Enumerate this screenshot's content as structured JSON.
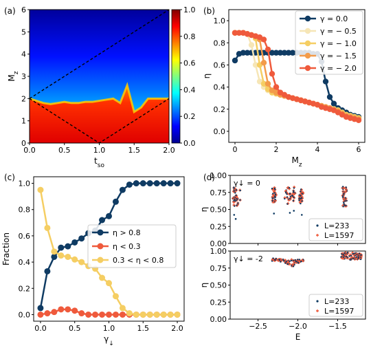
{
  "chart_data": [
    {
      "panel": "(a)",
      "type": "heatmap",
      "xlabel": "t_so",
      "ylabel": "M_z",
      "xlim": [
        0,
        2
      ],
      "ylim": [
        0,
        6
      ],
      "x_ticks": [
        "0.0",
        "0.5",
        "1.0",
        "1.5",
        "2.0"
      ],
      "y_ticks": [
        "0",
        "1",
        "2",
        "3",
        "4",
        "5",
        "6"
      ],
      "colorbar": {
        "range": [
          0,
          1
        ],
        "ticks": [
          "0.0",
          "0.2",
          "0.4",
          "0.6",
          "0.8",
          "1.0"
        ],
        "colormap": "jet"
      },
      "boundary_curve": {
        "x": [
          0,
          0.1,
          0.2,
          0.3,
          0.4,
          0.5,
          0.6,
          0.7,
          0.8,
          0.9,
          1.0,
          1.1,
          1.2,
          1.3,
          1.4,
          1.5,
          1.6,
          1.7,
          1.8,
          1.9,
          2.0
        ],
        "y": [
          2.0,
          1.9,
          1.8,
          1.75,
          1.8,
          1.85,
          1.8,
          1.8,
          1.85,
          1.85,
          1.9,
          1.95,
          2.0,
          1.8,
          2.6,
          1.4,
          1.6,
          2.0,
          2.0,
          2.0,
          2.0
        ]
      },
      "dashed_lines": [
        {
          "x": [
            0,
            2
          ],
          "y": [
            2,
            6
          ]
        },
        {
          "x": [
            0,
            1,
            2
          ],
          "y": [
            2,
            0,
            2
          ]
        }
      ]
    },
    {
      "panel": "(b)",
      "type": "line",
      "xlabel": "M_z",
      "ylabel": "η",
      "xlim": [
        -0.3,
        6.3
      ],
      "ylim": [
        -0.1,
        1.1
      ],
      "x_ticks": [
        "0",
        "2",
        "4",
        "6"
      ],
      "y_ticks": [
        "0.0",
        "0.2",
        "0.4",
        "0.6",
        "0.8",
        "1.0"
      ],
      "legend_position": "top-right",
      "x": [
        0,
        0.2,
        0.4,
        0.6,
        0.8,
        1.0,
        1.2,
        1.4,
        1.6,
        1.8,
        2.0,
        2.2,
        2.4,
        2.6,
        2.8,
        3.0,
        3.2,
        3.4,
        3.6,
        3.8,
        4.0,
        4.2,
        4.4,
        4.6,
        4.8,
        5.0,
        5.2,
        5.4,
        5.6,
        5.8,
        6.0
      ],
      "series": [
        {
          "name": "γ = 0.0",
          "color": "#0f3b63",
          "values": [
            0.64,
            0.7,
            0.71,
            0.71,
            0.71,
            0.71,
            0.71,
            0.71,
            0.71,
            0.71,
            0.71,
            0.71,
            0.71,
            0.71,
            0.71,
            0.71,
            0.71,
            0.71,
            0.71,
            0.7,
            0.7,
            0.63,
            0.45,
            0.31,
            0.25,
            0.21,
            0.19,
            0.17,
            0.15,
            0.14,
            0.13
          ]
        },
        {
          "name": "γ = − 0.5",
          "color": "#f6e6b6",
          "values": [
            0.89,
            0.89,
            0.89,
            0.88,
            0.78,
            0.6,
            0.45,
            0.4,
            0.37,
            0.35,
            0.34,
            0.33,
            0.32,
            0.31,
            0.3,
            0.29,
            0.28,
            0.27,
            0.26,
            0.25,
            0.24,
            0.23,
            0.22,
            0.21,
            0.2,
            0.19,
            0.17,
            0.15,
            0.14,
            0.13,
            0.12
          ]
        },
        {
          "name": "γ = − 1.0",
          "color": "#f5ce63",
          "values": [
            0.89,
            0.89,
            0.89,
            0.88,
            0.87,
            0.84,
            0.6,
            0.43,
            0.38,
            0.35,
            0.34,
            0.33,
            0.32,
            0.31,
            0.3,
            0.29,
            0.28,
            0.27,
            0.26,
            0.25,
            0.24,
            0.23,
            0.22,
            0.21,
            0.2,
            0.19,
            0.17,
            0.15,
            0.14,
            0.13,
            0.12
          ]
        },
        {
          "name": "γ = − 1.5",
          "color": "#f39b4a",
          "values": [
            0.89,
            0.89,
            0.89,
            0.88,
            0.87,
            0.86,
            0.83,
            0.62,
            0.43,
            0.37,
            0.35,
            0.33,
            0.32,
            0.31,
            0.3,
            0.29,
            0.28,
            0.27,
            0.26,
            0.25,
            0.24,
            0.23,
            0.22,
            0.21,
            0.19,
            0.18,
            0.16,
            0.14,
            0.13,
            0.12,
            0.11
          ]
        },
        {
          "name": "γ = − 2.0",
          "color": "#ef5a3c",
          "values": [
            0.89,
            0.89,
            0.89,
            0.88,
            0.87,
            0.86,
            0.85,
            0.83,
            0.74,
            0.52,
            0.4,
            0.35,
            0.33,
            0.31,
            0.3,
            0.29,
            0.28,
            0.27,
            0.26,
            0.25,
            0.24,
            0.22,
            0.21,
            0.2,
            0.19,
            0.17,
            0.15,
            0.13,
            0.12,
            0.11,
            0.1
          ]
        }
      ]
    },
    {
      "panel": "(c)",
      "type": "line",
      "xlabel": "γ_↓",
      "ylabel": "Fraction",
      "xlim": [
        -0.1,
        2.1
      ],
      "ylim": [
        -0.05,
        1.05
      ],
      "x_ticks": [
        "0.0",
        "0.5",
        "1.0",
        "1.5",
        "2.0"
      ],
      "y_ticks": [
        "0.0",
        "0.2",
        "0.4",
        "0.6",
        "0.8",
        "1.0"
      ],
      "legend_position": "center-right",
      "x": [
        0,
        0.1,
        0.2,
        0.3,
        0.4,
        0.5,
        0.6,
        0.7,
        0.8,
        0.9,
        1.0,
        1.1,
        1.2,
        1.3,
        1.4,
        1.5,
        1.6,
        1.7,
        1.8,
        1.9,
        2.0
      ],
      "series": [
        {
          "name": "η > 0.8",
          "color": "#0f3b63",
          "values": [
            0.05,
            0.33,
            0.44,
            0.51,
            0.52,
            0.55,
            0.58,
            0.62,
            0.64,
            0.72,
            0.75,
            0.86,
            0.95,
            0.99,
            1.0,
            1.0,
            1.0,
            1.0,
            1.0,
            1.0,
            1.0
          ]
        },
        {
          "name": "η < 0.3",
          "color": "#ef5a3c",
          "values": [
            0.0,
            0.01,
            0.02,
            0.04,
            0.04,
            0.03,
            0.01,
            0.0,
            0.0,
            0.0,
            0.0,
            0.0,
            0.0,
            0.0,
            0.0,
            0.0,
            0.0,
            0.0,
            0.0,
            0.0,
            0.0
          ]
        },
        {
          "name": "0.3 < η < 0.8",
          "color": "#f5ce63",
          "values": [
            0.95,
            0.66,
            0.48,
            0.45,
            0.44,
            0.42,
            0.4,
            0.37,
            0.35,
            0.28,
            0.24,
            0.14,
            0.05,
            0.01,
            0.0,
            0.0,
            0.0,
            0.0,
            0.0,
            0.0,
            0.0
          ]
        }
      ]
    },
    {
      "panel": "(d)",
      "type": "scatter",
      "xlabel": "E",
      "ylabel": "η",
      "xlim": [
        -2.85,
        -1.15
      ],
      "ylim": [
        0,
        1
      ],
      "x_ticks": [
        "−2.5",
        "−2.0",
        "−1.5"
      ],
      "y_ticks": [
        "0.00",
        "0.25",
        "0.50",
        "0.75",
        "1.00"
      ],
      "subplots": [
        {
          "annotation": "γ↓ = 0",
          "legend_position": "bottom-right",
          "series": [
            {
              "name": "L=233",
              "color": "#0f3b63",
              "marker": "dot"
            },
            {
              "name": "L=1597",
              "color": "#ef5a3c",
              "marker": "plus"
            }
          ],
          "clusters": [
            {
              "x_range": [
                -2.82,
                -2.72
              ],
              "y_range": [
                0.55,
                0.82
              ],
              "outliers": [
                [
                  -2.8,
                  0.42
                ],
                [
                  -2.78,
                  0.36
                ]
              ]
            },
            {
              "x_range": [
                -2.32,
                -2.27
              ],
              "y_range": [
                0.6,
                0.82
              ],
              "outliers": [
                [
                  -2.3,
                  0.44
                ]
              ]
            },
            {
              "x_range": [
                -2.17,
                -2.03
              ],
              "y_range": [
                0.58,
                0.84
              ],
              "outliers": [
                [
                  -2.1,
                  0.45
                ],
                [
                  -2.05,
                  0.48
                ]
              ]
            },
            {
              "x_range": [
                -1.98,
                -1.93
              ],
              "y_range": [
                0.6,
                0.8
              ],
              "outliers": [
                [
                  -1.95,
                  0.42
                ]
              ]
            },
            {
              "x_range": [
                -1.44,
                -1.39
              ],
              "y_range": [
                0.55,
                0.82
              ],
              "outliers": []
            }
          ]
        },
        {
          "annotation": "γ↓ = -2",
          "legend_position": "bottom-right",
          "series": [
            {
              "name": "L=233",
              "color": "#0f3b63",
              "marker": "dot"
            },
            {
              "name": "L=1597",
              "color": "#ef5a3c",
              "marker": "plus"
            }
          ],
          "clusters": [
            {
              "x_range": [
                -2.32,
                -1.93
              ],
              "y_range": [
                0.78,
                0.9
              ],
              "dip_center": -2.08
            },
            {
              "x_range": [
                -1.45,
                -1.2
              ],
              "y_range": [
                0.88,
                0.98
              ]
            }
          ]
        }
      ]
    }
  ]
}
